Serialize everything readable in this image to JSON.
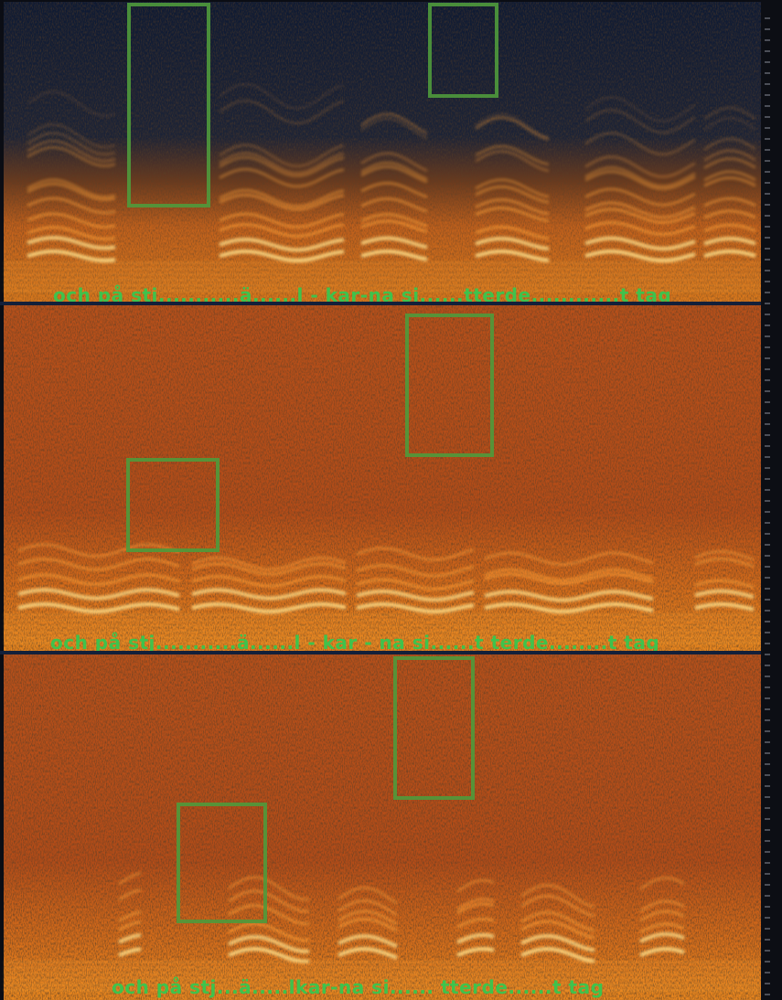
{
  "panels": [
    {
      "caption": "och på stj...........ä......l - kar-na   si......tterde............t tag"
    },
    {
      "caption": "och på stj...........ä......l - kar - na   si......t  terde........t tag"
    },
    {
      "caption": "och på stj...ä.....lkar-na   si......  tterde......t tag"
    }
  ]
}
